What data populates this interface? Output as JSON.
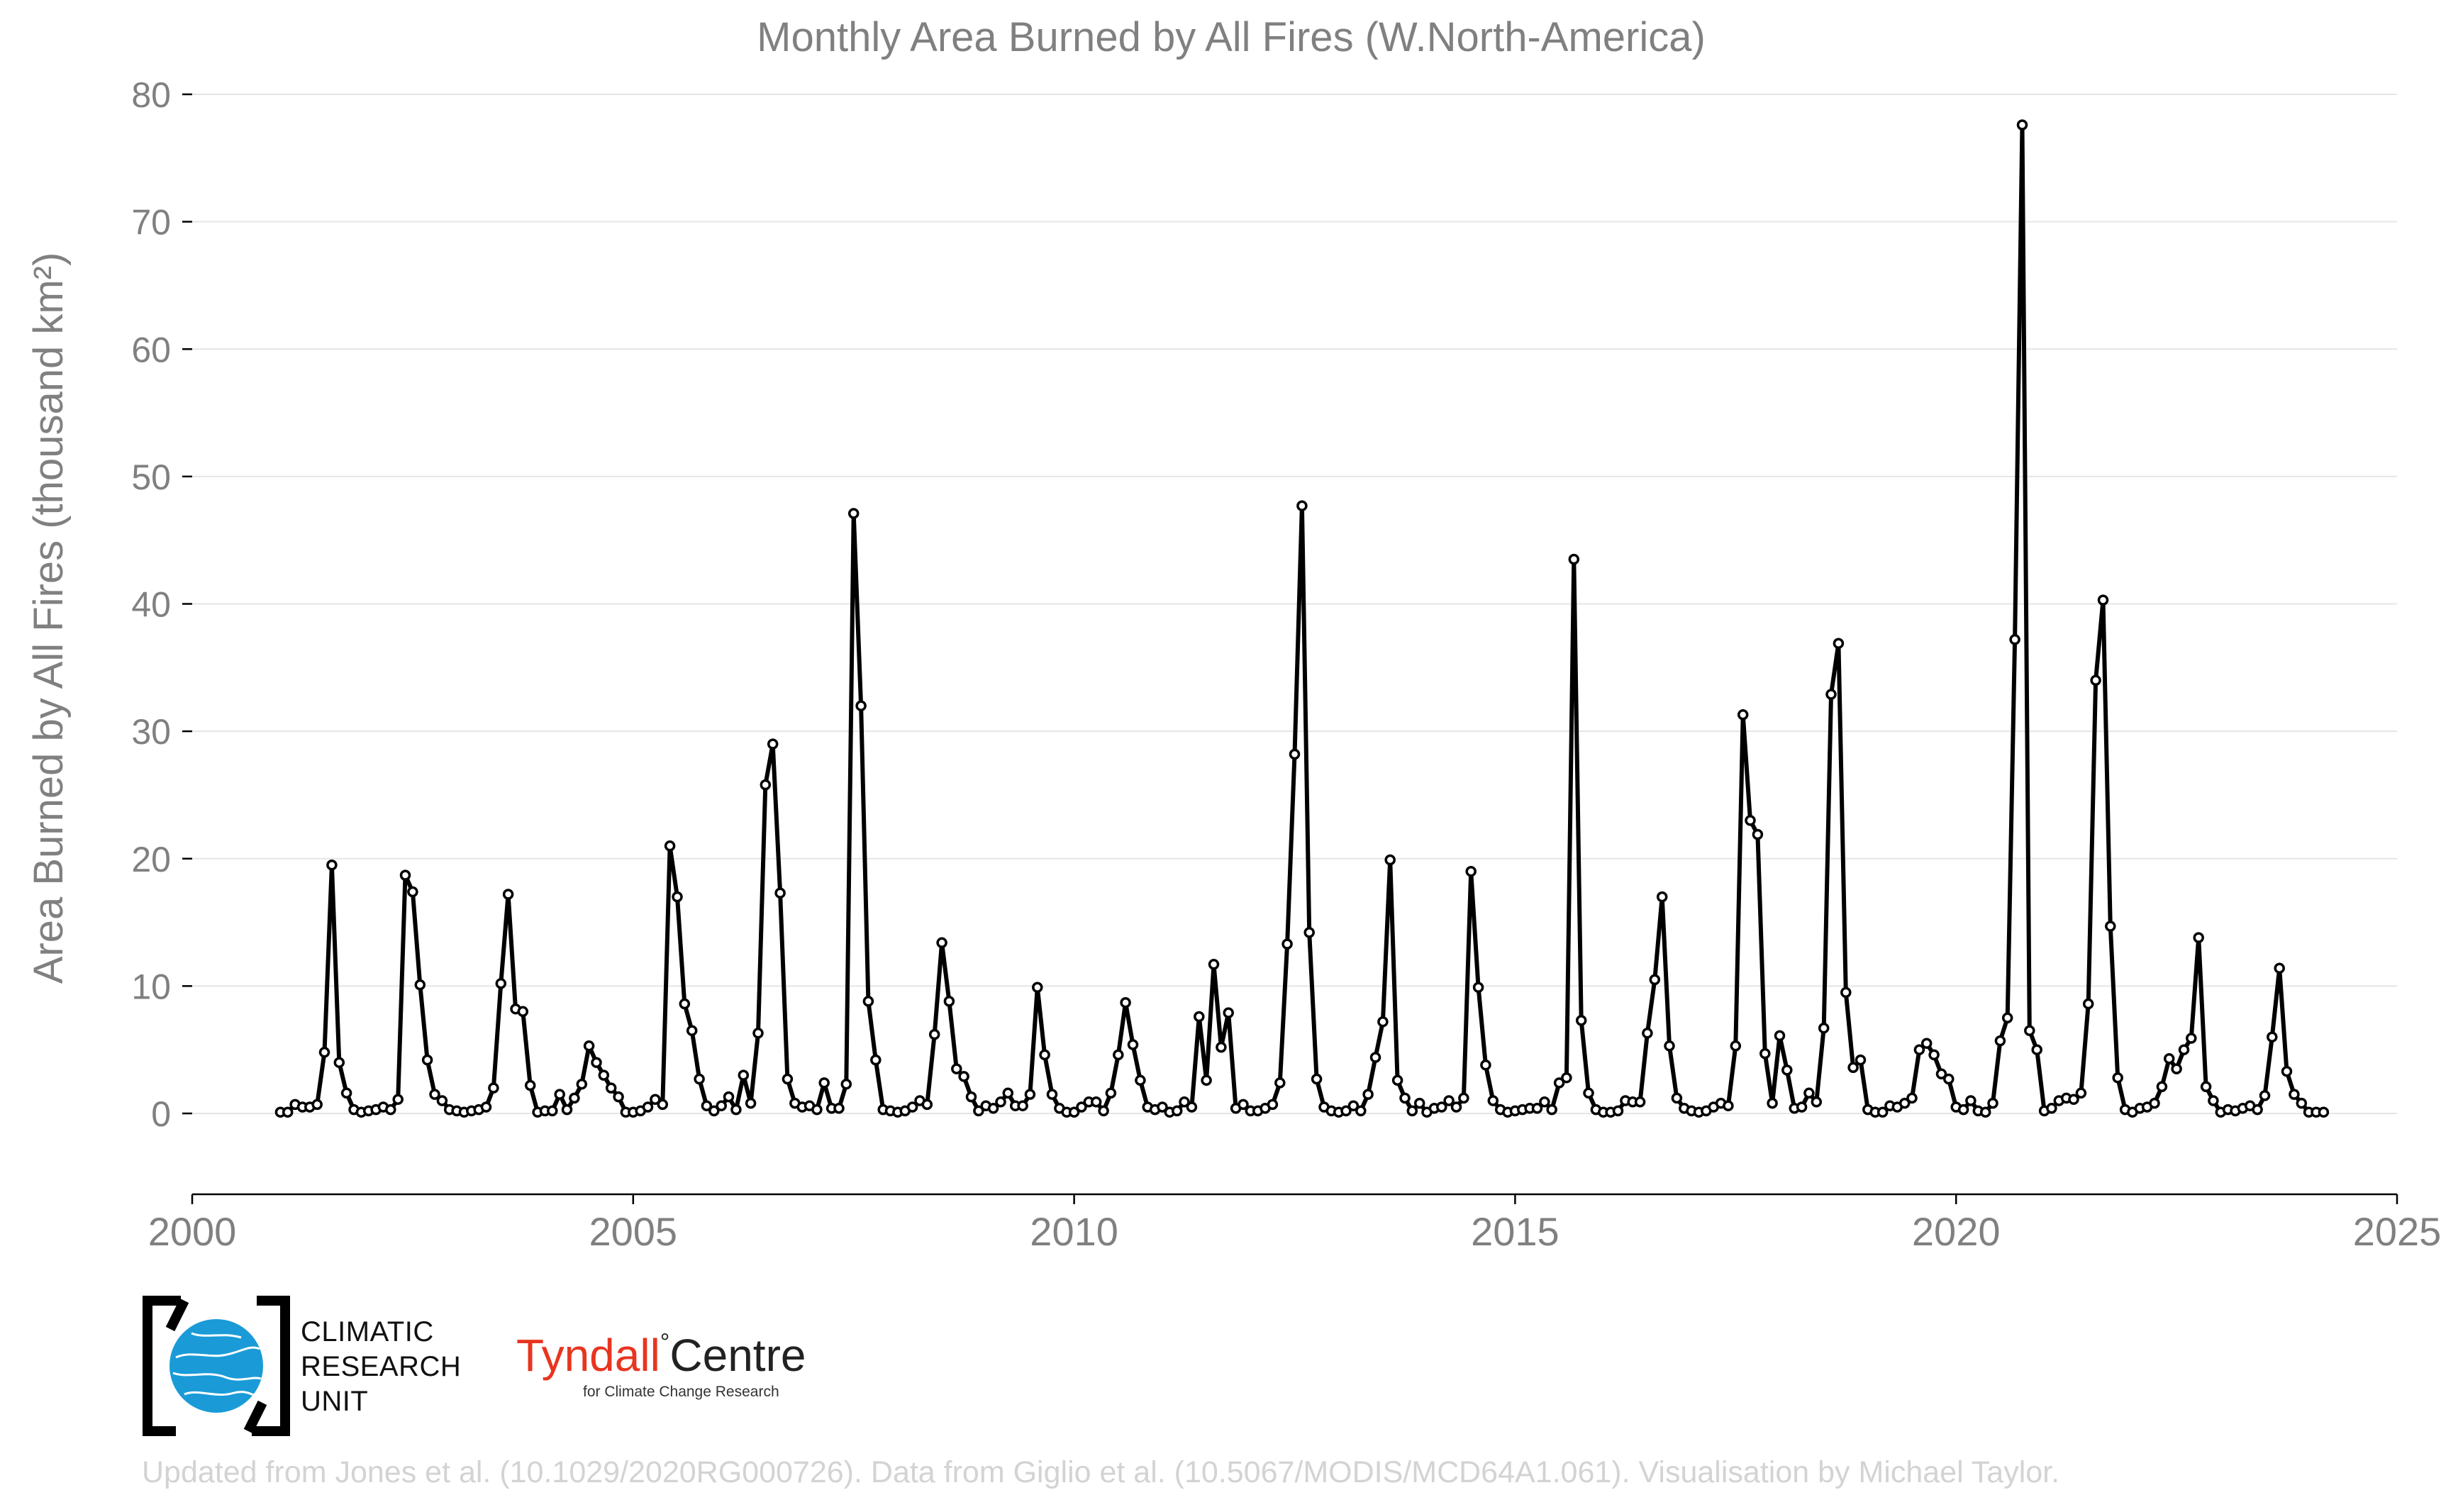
{
  "chart_data": {
    "type": "line",
    "title": "Monthly Area Burned by All Fires (W.North-America)",
    "ylabel": "Area Burned by All Fires (thousand km²)",
    "xlabel": "",
    "xlim": [
      2000,
      2025
    ],
    "ylim": [
      -6,
      80
    ],
    "xticks": [
      "2000",
      "2005",
      "2010",
      "2015",
      "2020",
      "2025"
    ],
    "yticks": [
      "0",
      "10",
      "20",
      "30",
      "40",
      "50",
      "60",
      "70",
      "80"
    ],
    "grid": "horizontal",
    "series": [
      {
        "x_start_year": 2001,
        "x_start_month": 1,
        "values": [
          0.1,
          0.1,
          0.7,
          0.5,
          0.5,
          0.7,
          4.8,
          19.5,
          4.0,
          1.6,
          0.3,
          0.1,
          0.2,
          0.3,
          0.5,
          0.3,
          1.1,
          18.7,
          17.4,
          10.1,
          4.2,
          1.5,
          1.0,
          0.3,
          0.2,
          0.1,
          0.2,
          0.3,
          0.5,
          2.0,
          10.2,
          17.2,
          8.2,
          8.0,
          2.2,
          0.1,
          0.2,
          0.2,
          1.5,
          0.3,
          1.2,
          2.3,
          5.3,
          4.0,
          3.0,
          2.0,
          1.3,
          0.1,
          0.1,
          0.2,
          0.5,
          1.1,
          0.7,
          21.0,
          17.0,
          8.6,
          6.5,
          2.7,
          0.6,
          0.2,
          0.6,
          1.3,
          0.3,
          3.0,
          0.8,
          6.3,
          25.8,
          29.0,
          17.3,
          2.7,
          0.8,
          0.5,
          0.6,
          0.3,
          2.4,
          0.4,
          0.4,
          2.3,
          47.1,
          32.0,
          8.8,
          4.2,
          0.3,
          0.2,
          0.1,
          0.2,
          0.5,
          1.0,
          0.7,
          6.2,
          13.4,
          8.8,
          3.5,
          2.9,
          1.3,
          0.2,
          0.6,
          0.4,
          0.9,
          1.6,
          0.6,
          0.6,
          1.5,
          9.9,
          4.6,
          1.5,
          0.4,
          0.1,
          0.1,
          0.5,
          0.9,
          0.9,
          0.2,
          1.6,
          4.6,
          8.7,
          5.4,
          2.6,
          0.5,
          0.3,
          0.5,
          0.1,
          0.2,
          0.9,
          0.5,
          7.6,
          2.6,
          11.7,
          5.2,
          7.9,
          0.4,
          0.7,
          0.2,
          0.2,
          0.4,
          0.7,
          2.4,
          13.3,
          28.2,
          47.7,
          14.2,
          2.7,
          0.5,
          0.2,
          0.1,
          0.2,
          0.6,
          0.2,
          1.5,
          4.4,
          7.2,
          19.9,
          2.6,
          1.2,
          0.2,
          0.8,
          0.1,
          0.4,
          0.5,
          1.0,
          0.5,
          1.2,
          19.0,
          9.9,
          3.8,
          1.0,
          0.3,
          0.1,
          0.2,
          0.3,
          0.4,
          0.4,
          0.9,
          0.3,
          2.4,
          2.8,
          43.5,
          7.3,
          1.6,
          0.3,
          0.1,
          0.1,
          0.2,
          1.0,
          0.9,
          0.9,
          6.3,
          10.5,
          17.0,
          5.3,
          1.2,
          0.4,
          0.2,
          0.1,
          0.2,
          0.5,
          0.8,
          0.6,
          5.3,
          31.3,
          23.0,
          21.9,
          4.7,
          0.8,
          6.1,
          3.4,
          0.4,
          0.5,
          1.6,
          0.9,
          6.7,
          32.9,
          36.9,
          9.5,
          3.6,
          4.2,
          0.3,
          0.1,
          0.1,
          0.6,
          0.5,
          0.8,
          1.2,
          5.0,
          5.5,
          4.6,
          3.1,
          2.7,
          0.5,
          0.3,
          1.0,
          0.2,
          0.1,
          0.8,
          5.7,
          7.5,
          37.2,
          77.6,
          6.5,
          5.0,
          0.2,
          0.4,
          1.0,
          1.2,
          1.1,
          1.6,
          8.6,
          34.0,
          40.3,
          14.7,
          2.8,
          0.3,
          0.1,
          0.4,
          0.5,
          0.8,
          2.1,
          4.3,
          3.5,
          5.0,
          5.9,
          13.8,
          2.1,
          1.0,
          0.1,
          0.3,
          0.2,
          0.4,
          0.6,
          0.3,
          1.4,
          6.0,
          11.4,
          3.3,
          1.5,
          0.8,
          0.1,
          0.1,
          0.1
        ]
      }
    ]
  },
  "logos": {
    "cru_lines": [
      "CLIMATIC",
      "RESEARCH",
      "UNIT"
    ],
    "tyndall_main": "Tyndall",
    "tyndall_degree": "°",
    "tyndall_centre": "Centre",
    "tyndall_sub": "for Climate Change Research"
  },
  "credit": "Updated from Jones et al. (10.1029/2020RG000726). Data from Giglio et al. (10.5067/MODIS/MCD64A1.061). Visualisation by Michael Taylor.",
  "colors": {
    "line": "#000000",
    "marker_fill": "#ffffff",
    "axis_text": "#808080",
    "grid": "#e5e5e5",
    "axis_line": "#000000",
    "credit": "#d3d3d3",
    "cru_globe": "#1a9bd7",
    "tyndall_red": "#e8351f"
  }
}
